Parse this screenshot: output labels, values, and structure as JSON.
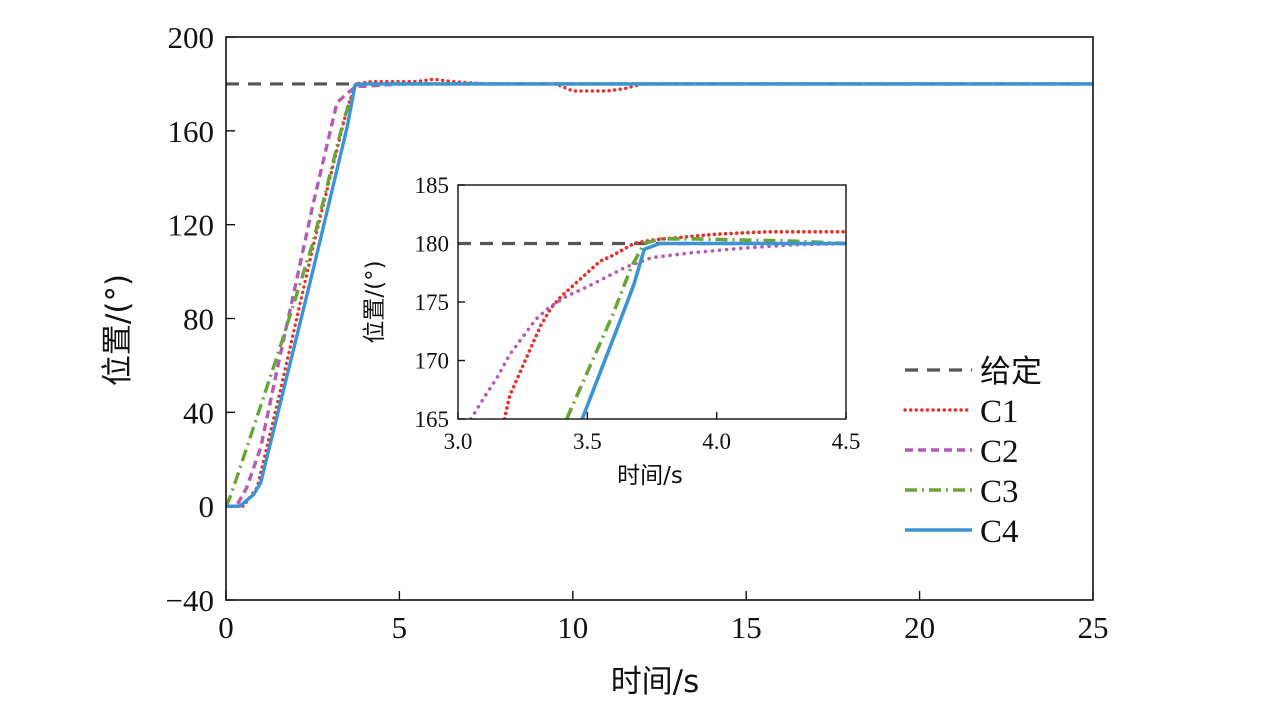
{
  "colors": {
    "reference": "#555555",
    "C1": "#e8312a",
    "C2": "#b45bb3",
    "C3": "#6aa536",
    "C4": "#3b94d6"
  },
  "chart_data": [
    {
      "type": "line",
      "xlabel": "时间/s",
      "ylabel": "位置/(°)",
      "xlim": [
        0,
        25
      ],
      "ylim": [
        -40,
        200
      ],
      "xticks": [
        "0",
        "5",
        "10",
        "15",
        "20",
        "25"
      ],
      "yticks": [
        "−40",
        "0",
        "40",
        "80",
        "120",
        "160",
        "200"
      ],
      "grid": false,
      "legend_position": "right",
      "legend": [
        "给定",
        "C1",
        "C2",
        "C3",
        "C4"
      ],
      "series": [
        {
          "name": "给定",
          "x": [
            0,
            25
          ],
          "y": [
            180,
            180
          ]
        },
        {
          "name": "C1",
          "x": [
            0,
            0.5,
            0.9,
            1.5,
            2.5,
            3.5,
            3.75,
            4.2,
            5.5,
            6.0,
            6.5,
            7.5,
            9.5,
            10.0,
            10.5,
            11.0,
            11.5,
            12.0,
            25
          ],
          "y": [
            0,
            0,
            8,
            45,
            110,
            170,
            180,
            181,
            181,
            182,
            181,
            180,
            180,
            177,
            177,
            177,
            178,
            180,
            180
          ]
        },
        {
          "name": "C2",
          "x": [
            0,
            0.3,
            0.6,
            1.0,
            1.5,
            2.5,
            3.2,
            3.5,
            3.75,
            4.0,
            5.0,
            25
          ],
          "y": [
            0,
            0,
            8,
            25,
            60,
            128,
            172,
            176,
            179,
            179,
            180,
            180
          ]
        },
        {
          "name": "C3",
          "x": [
            0,
            0.15,
            0.6,
            1.5,
            2.5,
            3.4,
            3.75,
            4.5,
            25
          ],
          "y": [
            0,
            5,
            25,
            65,
            112,
            165,
            180,
            180,
            180
          ]
        },
        {
          "name": "C4",
          "x": [
            0,
            0.4,
            0.8,
            1.0,
            1.5,
            2.5,
            3.5,
            3.72,
            4.0,
            25
          ],
          "y": [
            0,
            0,
            5,
            10,
            40,
            100,
            162,
            179.5,
            180,
            180
          ]
        }
      ]
    },
    {
      "type": "line",
      "xlabel": "时间/s",
      "ylabel": "位置/(°)",
      "xlim": [
        3.0,
        4.5
      ],
      "ylim": [
        165,
        185
      ],
      "xticks": [
        "3.0",
        "3.5",
        "4.0",
        "4.5"
      ],
      "yticks": [
        "165",
        "170",
        "175",
        "180",
        "185"
      ],
      "grid": false,
      "series": [
        {
          "name": "给定",
          "x": [
            3.0,
            4.5
          ],
          "y": [
            180,
            180
          ]
        },
        {
          "name": "C1",
          "x": [
            3.18,
            3.2,
            3.22,
            3.25,
            3.28,
            3.32,
            3.36,
            3.4,
            3.45,
            3.5,
            3.55,
            3.6,
            3.68,
            3.75,
            3.85,
            4.0,
            4.2,
            4.5
          ],
          "y": [
            165,
            167,
            168,
            169.5,
            171,
            173,
            174.5,
            175.5,
            176.5,
            177.5,
            178.5,
            179,
            180,
            180.3,
            180.5,
            180.8,
            181,
            181
          ]
        },
        {
          "name": "C2",
          "x": [
            3.05,
            3.1,
            3.15,
            3.2,
            3.25,
            3.3,
            3.35,
            3.42,
            3.5,
            3.58,
            3.65,
            3.75,
            3.9,
            4.1,
            4.3,
            4.5
          ],
          "y": [
            165,
            166.8,
            168.5,
            170.5,
            172,
            173.5,
            174.5,
            175.5,
            176.3,
            177.2,
            178,
            178.8,
            179.2,
            179.6,
            179.9,
            180
          ]
        },
        {
          "name": "C3",
          "x": [
            3.42,
            3.5,
            3.6,
            3.67,
            3.72,
            3.78,
            3.9,
            4.1,
            4.3,
            4.5
          ],
          "y": [
            165,
            169,
            174,
            178,
            180,
            180.4,
            180.4,
            180.3,
            180.2,
            180
          ]
        },
        {
          "name": "C4",
          "x": [
            3.48,
            3.55,
            3.62,
            3.68,
            3.72,
            3.78,
            3.9,
            4.2,
            4.5
          ],
          "y": [
            165,
            169,
            173,
            176.5,
            179.5,
            180,
            180,
            180,
            180
          ]
        }
      ]
    }
  ]
}
